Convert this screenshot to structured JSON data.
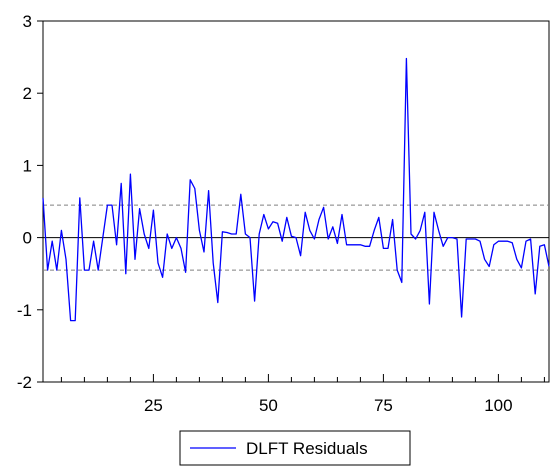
{
  "chart_data": {
    "type": "line",
    "ylim": [
      -2,
      3
    ],
    "xlim": [
      1,
      111
    ],
    "yticks": [
      -2,
      -1,
      0,
      1,
      2,
      3
    ],
    "xticks": [
      25,
      50,
      75,
      100
    ],
    "grid": false,
    "zero_line": 0,
    "band": {
      "upper": 0.45,
      "lower": -0.45,
      "style": "dashed"
    },
    "legend": {
      "placement": "bottom-center",
      "entry": "DLFT Residuals"
    },
    "series": [
      {
        "name": "DLFT Residuals",
        "color": "#0000ff",
        "x": [
          1,
          2,
          3,
          4,
          5,
          6,
          7,
          8,
          9,
          10,
          11,
          12,
          13,
          14,
          15,
          16,
          17,
          18,
          19,
          20,
          21,
          22,
          23,
          24,
          25,
          26,
          27,
          28,
          29,
          30,
          31,
          32,
          33,
          34,
          35,
          36,
          37,
          38,
          39,
          40,
          41,
          42,
          43,
          44,
          45,
          46,
          47,
          48,
          49,
          50,
          51,
          52,
          53,
          54,
          55,
          56,
          57,
          58,
          59,
          60,
          61,
          62,
          63,
          64,
          65,
          66,
          67,
          68,
          69,
          70,
          71,
          72,
          73,
          74,
          75,
          76,
          77,
          78,
          79,
          80,
          81,
          82,
          83,
          84,
          85,
          86,
          87,
          88,
          89,
          90,
          91,
          92,
          93,
          94,
          95,
          96,
          97,
          98,
          99,
          100,
          101,
          102,
          103,
          104,
          105,
          106,
          107,
          108,
          109,
          110,
          111
        ],
        "values": [
          0.55,
          -0.45,
          -0.05,
          -0.45,
          0.1,
          -0.3,
          -1.15,
          -1.15,
          0.55,
          -0.45,
          -0.45,
          -0.05,
          -0.45,
          0.0,
          0.45,
          0.45,
          -0.1,
          0.75,
          -0.5,
          0.88,
          -0.3,
          0.4,
          0.05,
          -0.15,
          0.38,
          -0.35,
          -0.55,
          0.05,
          -0.15,
          0.0,
          -0.15,
          -0.48,
          0.8,
          0.68,
          0.1,
          -0.2,
          0.65,
          -0.35,
          -0.9,
          0.08,
          0.07,
          0.05,
          0.05,
          0.6,
          0.05,
          0.0,
          -0.88,
          0.05,
          0.32,
          0.12,
          0.22,
          0.2,
          -0.05,
          0.28,
          0.02,
          0.0,
          -0.25,
          0.35,
          0.1,
          -0.02,
          0.25,
          0.42,
          -0.02,
          0.15,
          -0.08,
          0.32,
          -0.1,
          -0.1,
          -0.1,
          -0.1,
          -0.12,
          -0.12,
          0.1,
          0.28,
          -0.15,
          -0.15,
          0.25,
          -0.45,
          -0.62,
          2.48,
          0.05,
          -0.02,
          0.1,
          0.35,
          -0.92,
          0.35,
          0.1,
          -0.12,
          0.0,
          0.0,
          -0.02,
          -1.1,
          -0.02,
          -0.02,
          -0.02,
          -0.05,
          -0.3,
          -0.4,
          -0.1,
          -0.05,
          -0.05,
          -0.05,
          -0.07,
          -0.3,
          -0.42,
          -0.05,
          -0.02,
          -0.78,
          -0.12,
          -0.1,
          -0.4
        ]
      }
    ]
  }
}
